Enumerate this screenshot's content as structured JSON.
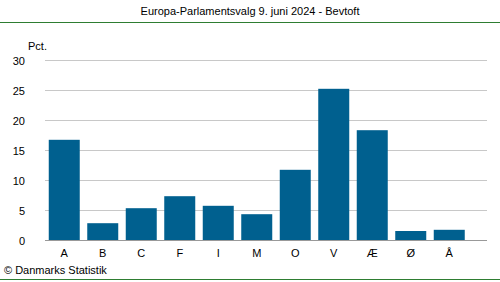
{
  "chart_data": {
    "type": "bar",
    "title": "Europa-Parlamentsvalg 9. juni 2024 - Bevtoft",
    "y_label": "Pct.",
    "source": "© Danmarks Statistik",
    "categories": [
      "A",
      "B",
      "C",
      "F",
      "I",
      "M",
      "O",
      "V",
      "Æ",
      "Ø",
      "Å"
    ],
    "values": [
      16.7,
      2.8,
      5.3,
      7.3,
      5.7,
      4.3,
      11.7,
      25.2,
      18.3,
      1.5,
      1.7
    ],
    "color": "#00608f",
    "ylim": [
      0,
      30
    ],
    "yticks": [
      0,
      5,
      10,
      15,
      20,
      25,
      30
    ],
    "grid": true
  }
}
